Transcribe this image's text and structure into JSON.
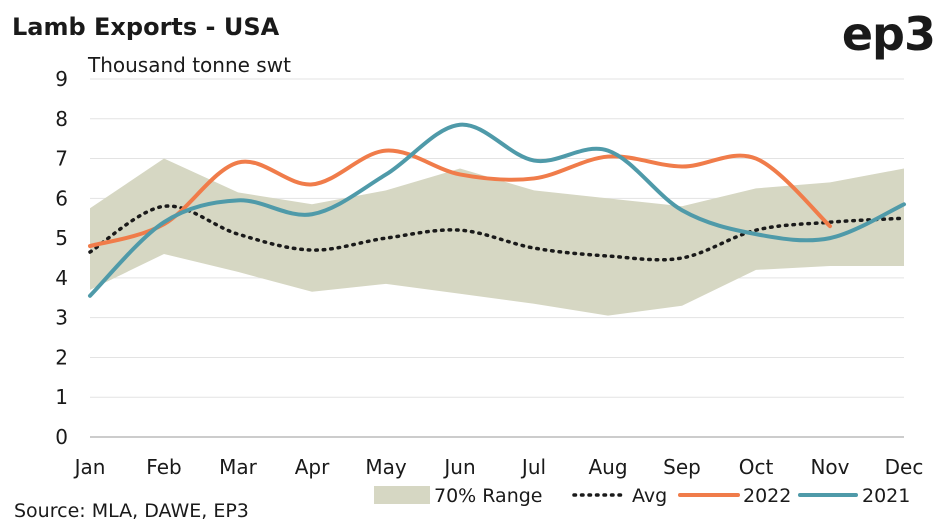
{
  "colors": {
    "range": "#d6d7c3",
    "avg": "#1a1a1a",
    "s2022": "#f07c4a",
    "s2021": "#4f9aa9",
    "grid": "#e3e3e3"
  },
  "chart_data": {
    "type": "line",
    "title": "Lamb Exports - USA",
    "logo": "ep3",
    "unit_label": "Thousand tonne swt",
    "source": "Source: MLA, DAWE, EP3",
    "ylim": [
      0,
      9
    ],
    "yticks": [
      0,
      1,
      2,
      3,
      4,
      5,
      6,
      7,
      8,
      9
    ],
    "grid": true,
    "legend_position": "bottom",
    "categories": [
      "Jan",
      "Feb",
      "Mar",
      "Apr",
      "May",
      "Jun",
      "Jul",
      "Aug",
      "Sep",
      "Oct",
      "Nov",
      "Dec"
    ],
    "range": {
      "name": "70% Range",
      "upper": [
        5.75,
        7.0,
        6.15,
        5.85,
        6.2,
        6.75,
        6.2,
        6.0,
        5.8,
        6.25,
        6.4,
        6.75
      ],
      "lower": [
        3.7,
        4.6,
        4.15,
        3.65,
        3.85,
        3.6,
        3.35,
        3.05,
        3.3,
        4.2,
        4.3,
        4.3
      ]
    },
    "series": [
      {
        "name": "Avg",
        "values": [
          4.65,
          5.8,
          5.1,
          4.7,
          5.0,
          5.2,
          4.75,
          4.55,
          4.5,
          5.2,
          5.4,
          5.5
        ]
      },
      {
        "name": "2022",
        "values": [
          4.8,
          5.35,
          6.9,
          6.35,
          7.2,
          6.6,
          6.5,
          7.05,
          6.8,
          7.0,
          5.3,
          null
        ]
      },
      {
        "name": "2021",
        "values": [
          3.55,
          5.4,
          5.95,
          5.6,
          6.6,
          7.85,
          6.95,
          7.2,
          5.7,
          5.1,
          5.0,
          5.85
        ]
      }
    ]
  }
}
